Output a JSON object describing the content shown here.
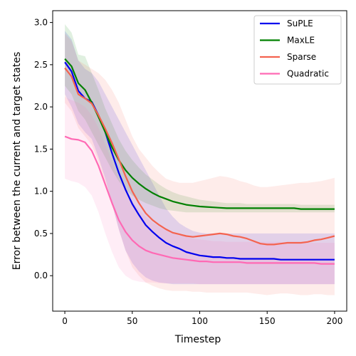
{
  "chart_data": {
    "type": "line",
    "xlabel": "Timestep",
    "ylabel": "Error between the current and target states",
    "xlim": [
      -9,
      209
    ],
    "ylim": [
      -0.42,
      3.14
    ],
    "xticks": [
      "0",
      "50",
      "100",
      "150",
      "200"
    ],
    "yticks": [
      "0.0",
      "0.5",
      "1.0",
      "1.5",
      "2.0",
      "2.5",
      "3.0"
    ],
    "legend_position": "top-right",
    "grid": false,
    "x": [
      0,
      5,
      10,
      15,
      20,
      25,
      30,
      35,
      40,
      45,
      50,
      55,
      60,
      65,
      70,
      75,
      80,
      85,
      90,
      95,
      100,
      105,
      110,
      115,
      120,
      125,
      130,
      135,
      140,
      145,
      150,
      155,
      160,
      165,
      170,
      175,
      180,
      185,
      190,
      195,
      200
    ],
    "series": [
      {
        "name": "SuPLE",
        "color": "#0000ee",
        "values": [
          2.53,
          2.42,
          2.19,
          2.1,
          2.06,
          1.9,
          1.7,
          1.45,
          1.22,
          1.02,
          0.85,
          0.72,
          0.6,
          0.52,
          0.45,
          0.39,
          0.35,
          0.32,
          0.28,
          0.26,
          0.24,
          0.23,
          0.22,
          0.22,
          0.21,
          0.21,
          0.2,
          0.2,
          0.2,
          0.2,
          0.2,
          0.2,
          0.19,
          0.19,
          0.19,
          0.19,
          0.19,
          0.19,
          0.19,
          0.19,
          0.19
        ],
        "lower": [
          2.15,
          2.0,
          1.8,
          1.7,
          1.62,
          1.4,
          1.15,
          0.85,
          0.55,
          0.3,
          0.15,
          0.05,
          -0.02,
          -0.06,
          -0.08,
          -0.09,
          -0.1,
          -0.1,
          -0.1,
          -0.1,
          -0.1,
          -0.1,
          -0.1,
          -0.1,
          -0.1,
          -0.1,
          -0.1,
          -0.1,
          -0.1,
          -0.1,
          -0.1,
          -0.1,
          -0.1,
          -0.1,
          -0.1,
          -0.1,
          -0.1,
          -0.1,
          -0.1,
          -0.1,
          -0.1
        ],
        "upper": [
          2.9,
          2.8,
          2.55,
          2.45,
          2.4,
          2.3,
          2.15,
          2.0,
          1.85,
          1.7,
          1.55,
          1.4,
          1.25,
          1.1,
          0.95,
          0.8,
          0.7,
          0.62,
          0.57,
          0.53,
          0.51,
          0.5,
          0.5,
          0.5,
          0.5,
          0.5,
          0.5,
          0.5,
          0.5,
          0.5,
          0.5,
          0.5,
          0.5,
          0.5,
          0.5,
          0.5,
          0.5,
          0.5,
          0.5,
          0.5,
          0.5
        ]
      },
      {
        "name": "MaxLE",
        "color": "#008000",
        "values": [
          2.57,
          2.48,
          2.28,
          2.2,
          2.05,
          1.88,
          1.7,
          1.52,
          1.37,
          1.25,
          1.16,
          1.09,
          1.03,
          0.98,
          0.94,
          0.91,
          0.88,
          0.86,
          0.84,
          0.83,
          0.82,
          0.815,
          0.81,
          0.805,
          0.8,
          0.8,
          0.8,
          0.8,
          0.8,
          0.8,
          0.8,
          0.8,
          0.8,
          0.8,
          0.8,
          0.79,
          0.79,
          0.79,
          0.79,
          0.79,
          0.79
        ],
        "lower": [
          2.25,
          2.15,
          1.95,
          1.85,
          1.7,
          1.55,
          1.4,
          1.25,
          1.12,
          1.02,
          0.95,
          0.9,
          0.86,
          0.83,
          0.8,
          0.78,
          0.77,
          0.76,
          0.75,
          0.75,
          0.75,
          0.75,
          0.75,
          0.75,
          0.75,
          0.75,
          0.75,
          0.75,
          0.75,
          0.75,
          0.75,
          0.75,
          0.75,
          0.75,
          0.75,
          0.75,
          0.75,
          0.75,
          0.75,
          0.75,
          0.75
        ],
        "upper": [
          2.98,
          2.88,
          2.62,
          2.6,
          2.4,
          2.2,
          1.98,
          1.8,
          1.62,
          1.48,
          1.37,
          1.28,
          1.2,
          1.14,
          1.08,
          1.03,
          0.99,
          0.96,
          0.94,
          0.92,
          0.9,
          0.89,
          0.88,
          0.87,
          0.86,
          0.86,
          0.86,
          0.85,
          0.85,
          0.85,
          0.85,
          0.85,
          0.85,
          0.85,
          0.85,
          0.84,
          0.84,
          0.84,
          0.84,
          0.84,
          0.84
        ]
      },
      {
        "name": "Sparse",
        "color": "#f4634f",
        "values": [
          2.46,
          2.36,
          2.15,
          2.1,
          2.04,
          1.9,
          1.74,
          1.57,
          1.38,
          1.18,
          1.0,
          0.86,
          0.74,
          0.66,
          0.6,
          0.55,
          0.51,
          0.49,
          0.47,
          0.46,
          0.47,
          0.48,
          0.49,
          0.5,
          0.49,
          0.47,
          0.46,
          0.44,
          0.41,
          0.38,
          0.37,
          0.37,
          0.38,
          0.39,
          0.39,
          0.39,
          0.4,
          0.42,
          0.43,
          0.45,
          0.47
        ],
        "lower": [
          2.05,
          1.95,
          1.75,
          1.65,
          1.55,
          1.35,
          1.1,
          0.85,
          0.55,
          0.3,
          0.1,
          0.0,
          -0.08,
          -0.12,
          -0.15,
          -0.17,
          -0.18,
          -0.18,
          -0.18,
          -0.19,
          -0.19,
          -0.2,
          -0.2,
          -0.2,
          -0.2,
          -0.2,
          -0.2,
          -0.2,
          -0.21,
          -0.22,
          -0.23,
          -0.22,
          -0.21,
          -0.21,
          -0.22,
          -0.23,
          -0.23,
          -0.22,
          -0.22,
          -0.23,
          -0.23
        ],
        "upper": [
          2.87,
          2.78,
          2.55,
          2.5,
          2.45,
          2.4,
          2.32,
          2.2,
          2.05,
          1.85,
          1.65,
          1.5,
          1.4,
          1.3,
          1.22,
          1.15,
          1.12,
          1.1,
          1.1,
          1.1,
          1.12,
          1.14,
          1.16,
          1.18,
          1.17,
          1.15,
          1.12,
          1.1,
          1.07,
          1.05,
          1.05,
          1.06,
          1.07,
          1.08,
          1.09,
          1.1,
          1.1,
          1.11,
          1.12,
          1.14,
          1.16
        ]
      },
      {
        "name": "Quadratic",
        "color": "#ff69b4",
        "values": [
          1.65,
          1.62,
          1.61,
          1.58,
          1.48,
          1.3,
          1.08,
          0.86,
          0.66,
          0.52,
          0.42,
          0.35,
          0.3,
          0.27,
          0.25,
          0.23,
          0.21,
          0.2,
          0.19,
          0.18,
          0.17,
          0.17,
          0.16,
          0.16,
          0.16,
          0.16,
          0.16,
          0.15,
          0.15,
          0.15,
          0.15,
          0.15,
          0.15,
          0.15,
          0.15,
          0.15,
          0.15,
          0.15,
          0.14,
          0.14,
          0.14
        ],
        "lower": [
          1.15,
          1.12,
          1.1,
          1.05,
          0.95,
          0.75,
          0.5,
          0.28,
          0.1,
          0.0,
          -0.05,
          -0.07,
          -0.08,
          -0.08,
          -0.09,
          -0.09,
          -0.09,
          -0.09,
          -0.09,
          -0.09,
          -0.1,
          -0.1,
          -0.1,
          -0.1,
          -0.1,
          -0.1,
          -0.1,
          -0.1,
          -0.1,
          -0.1,
          -0.1,
          -0.1,
          -0.1,
          -0.1,
          -0.1,
          -0.1,
          -0.1,
          -0.1,
          -0.1,
          -0.1,
          -0.1
        ],
        "upper": [
          2.12,
          2.08,
          2.05,
          2.0,
          1.9,
          1.75,
          1.55,
          1.35,
          1.15,
          1.0,
          0.88,
          0.78,
          0.7,
          0.63,
          0.58,
          0.54,
          0.5,
          0.48,
          0.46,
          0.44,
          0.43,
          0.42,
          0.41,
          0.41,
          0.4,
          0.4,
          0.4,
          0.4,
          0.4,
          0.4,
          0.4,
          0.4,
          0.4,
          0.39,
          0.39,
          0.39,
          0.39,
          0.39,
          0.39,
          0.39,
          0.39
        ]
      }
    ]
  }
}
